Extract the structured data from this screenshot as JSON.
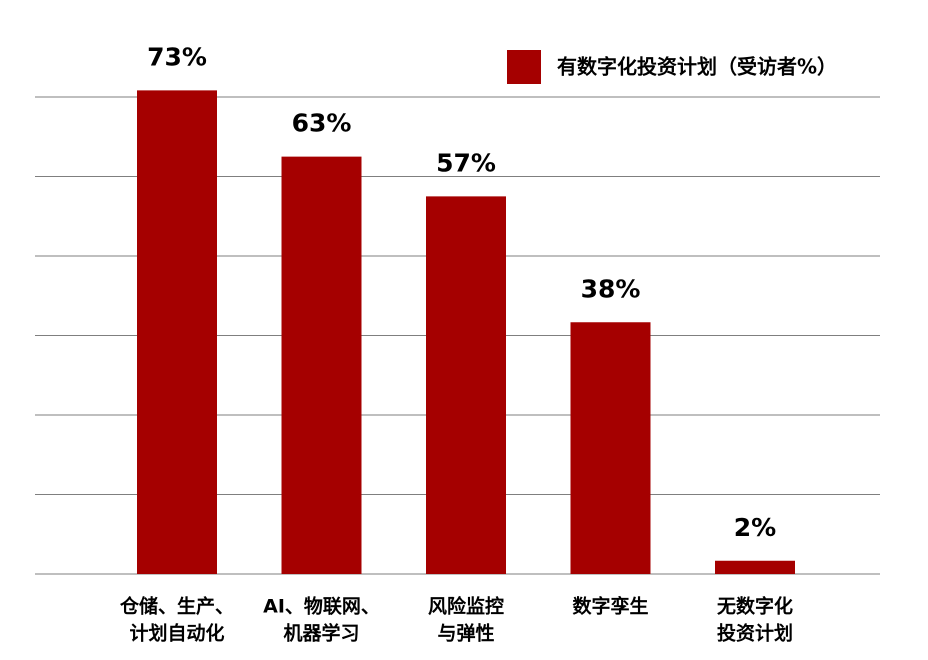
{
  "chart_data": {
    "type": "bar",
    "categories": [
      [
        "仓储、生产、",
        "计划自动化"
      ],
      [
        "AI、物联网、",
        "机器学习"
      ],
      [
        "风险监控",
        "与弹性"
      ],
      [
        "数字孪生"
      ],
      [
        "无数字化",
        "投资计划"
      ]
    ],
    "series": [
      {
        "name": "有数字化投资计划（受访者%）",
        "color": "#a50000",
        "values": [
          73,
          63,
          57,
          38,
          2
        ],
        "value_labels": [
          "73%",
          "63%",
          "57%",
          "38%",
          "2%"
        ]
      }
    ],
    "ylim": [
      0,
      80
    ],
    "yticks": [
      0,
      12,
      24,
      36,
      48,
      60,
      72
    ],
    "grid": true,
    "legend": "top-right"
  }
}
